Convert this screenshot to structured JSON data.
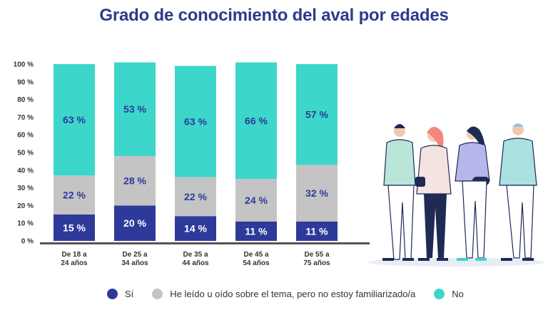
{
  "chart_data": {
    "type": "stacked-bar",
    "title": "Grado de conocimiento del aval por edades",
    "categories": [
      [
        "De 18 a",
        "24 años"
      ],
      [
        "De 25 a",
        "34 años"
      ],
      [
        "De 35 a",
        "44 años"
      ],
      [
        "De 45 a",
        "54 años"
      ],
      [
        "De 55 a",
        "75 años"
      ]
    ],
    "ylim": [
      0,
      100
    ],
    "yticks": [
      "0 %",
      "10 %",
      "20 %",
      "30 %",
      "40 %",
      "50 %",
      "60 %",
      "70 %",
      "80 %",
      "90 %",
      "100 %"
    ],
    "series": [
      {
        "name": "Sí",
        "color": "#2e3a9a",
        "values": [
          15,
          20,
          14,
          11,
          11
        ],
        "labels": [
          "15 %",
          "20 %",
          "14 %",
          "11 %",
          "11 %"
        ]
      },
      {
        "name": "He leído u oído sobre el tema, pero no estoy familiarizado/a",
        "color": "#c4c4c4",
        "values": [
          22,
          28,
          22,
          24,
          32
        ],
        "labels": [
          "22 %",
          "28 %",
          "22 %",
          "24 %",
          "32 %"
        ]
      },
      {
        "name": "No",
        "color": "#3dd6cb",
        "values": [
          63,
          53,
          63,
          66,
          57
        ],
        "labels": [
          "63 %",
          "53 %",
          "63 %",
          "66 %",
          "57 %"
        ]
      }
    ],
    "legend": "bottom"
  },
  "colors": {
    "title": "#2e3a8c",
    "label_dark": "#2e3a9a",
    "label_light": "#ffffff"
  },
  "illustration": {
    "icon": "group-of-people-illustration"
  }
}
